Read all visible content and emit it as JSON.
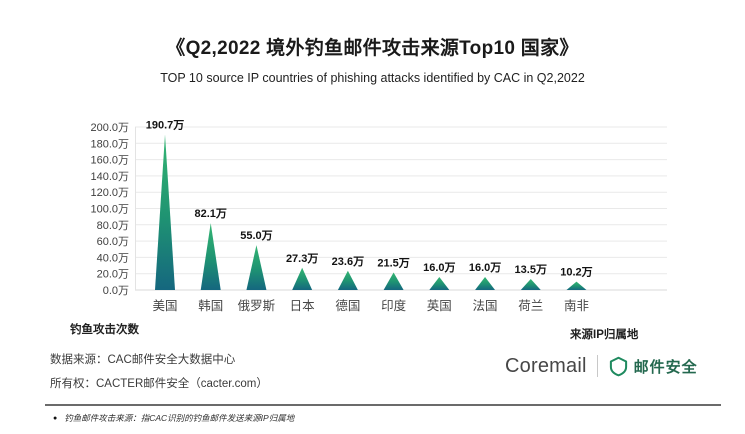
{
  "title": "《Q2,2022 境外钓鱼邮件攻击来源Top10 国家》",
  "subtitle": "TOP 10 source IP countries of phishing attacks identified by CAC in Q2,2022",
  "chart_data": {
    "type": "bar",
    "bar_shape": "triangle",
    "categories": [
      "美国",
      "韩国",
      "俄罗斯",
      "日本",
      "德国",
      "印度",
      "英国",
      "法国",
      "荷兰",
      "南非"
    ],
    "values": [
      190.7,
      82.1,
      55.0,
      27.3,
      23.6,
      21.5,
      16.0,
      16.0,
      13.5,
      10.2
    ],
    "value_labels": [
      "190.7万",
      "82.1万",
      "55.0万",
      "27.3万",
      "23.6万",
      "21.5万",
      "16.0万",
      "16.0万",
      "13.5万",
      "10.2万"
    ],
    "unit": "万",
    "ylim": [
      0,
      200
    ],
    "ytick_step": 20,
    "ytick_labels": [
      "0.0万",
      "20.0万",
      "40.0万",
      "60.0万",
      "80.0万",
      "100.0万",
      "120.0万",
      "140.0万",
      "160.0万",
      "180.0万",
      "200.0万"
    ],
    "grid": true,
    "legend": "none",
    "xlabel_left": "钓鱼攻击次数",
    "xlabel_right": "来源IP归属地",
    "colors": {
      "bar_gradient_top": "#34b573",
      "bar_gradient_mid": "#1f9472",
      "bar_gradient_bottom": "#15677f",
      "gridline": "#e9e9e9",
      "zero_line": "#d9d9d9",
      "axis_line": "#e3e3e3",
      "tick_label": "#3f3f3f",
      "value_label": "#121212",
      "category_label": "#474747"
    }
  },
  "footer": {
    "source_line1": "数据来源：CAC邮件安全大数据中心",
    "source_line2": "所有权：CACTER邮件安全（cacter.com）",
    "brand": "Coremail",
    "brand_product": "邮件安全",
    "brand_color": "#1f8a5f",
    "note_bullet": "●",
    "note": "钓鱼邮件攻击来源：指CAC识别的钓鱼邮件发送来源IP归属地"
  }
}
